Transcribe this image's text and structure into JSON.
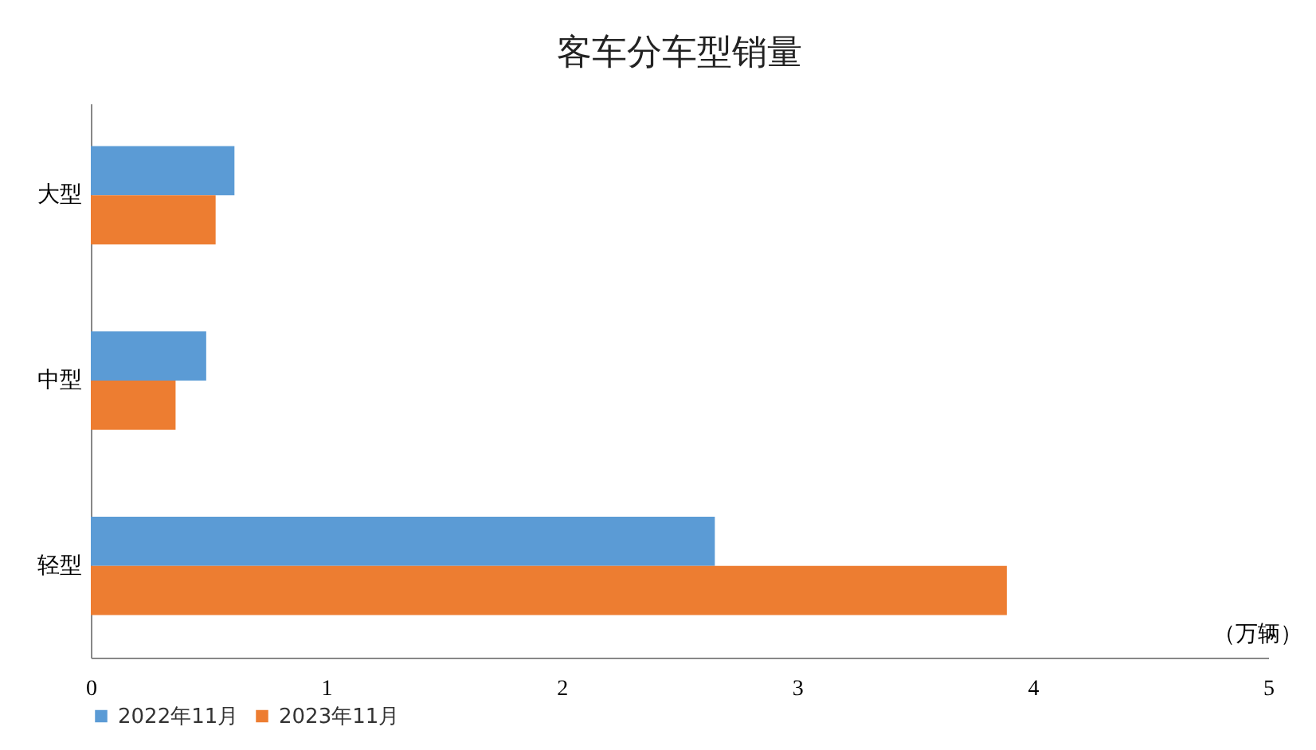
{
  "chart_data": {
    "type": "bar",
    "orientation": "horizontal",
    "title": "客车分车型销量",
    "xlabel": "（万辆）",
    "categories": [
      "大型",
      "中型",
      "轻型"
    ],
    "series": [
      {
        "name": "2022年11月",
        "color": "#5b9bd5",
        "values": [
          0.61,
          0.49,
          2.65
        ]
      },
      {
        "name": "2023年11月",
        "color": "#ed7d31",
        "values": [
          0.53,
          0.36,
          3.89
        ]
      }
    ],
    "xlim": [
      0,
      5
    ],
    "xticks": [
      0,
      1,
      2,
      3,
      4,
      5
    ],
    "grid": false,
    "legend": "bottom"
  }
}
